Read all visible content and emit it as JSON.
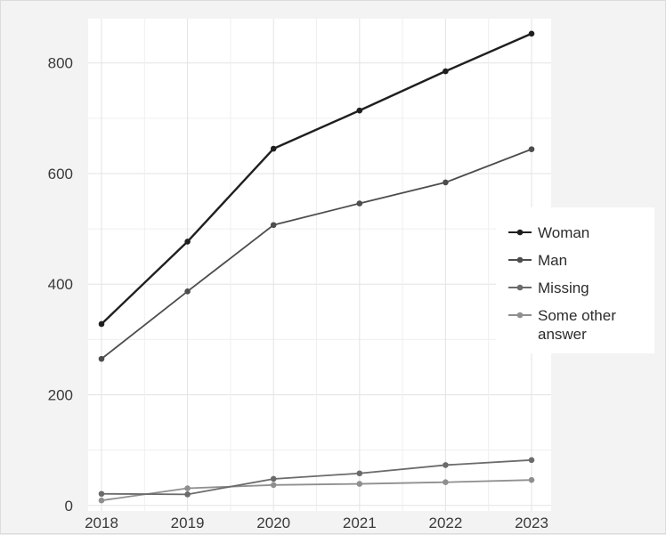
{
  "chart_data": {
    "type": "line",
    "title": "",
    "xlabel": "",
    "ylabel": "",
    "x": [
      2018,
      2019,
      2020,
      2021,
      2022,
      2023
    ],
    "xlim": [
      2017.92,
      2024.0
    ],
    "ylim": [
      -10,
      880
    ],
    "yticks": [
      0,
      200,
      400,
      600,
      800
    ],
    "grid": true,
    "legend_position": "right",
    "series": [
      {
        "name": "Woman",
        "color": "#1f1f1f",
        "values": [
          328,
          477,
          645,
          714,
          785,
          853
        ]
      },
      {
        "name": "Man",
        "color": "#4d4d4d",
        "values": [
          265,
          387,
          507,
          546,
          584,
          644
        ]
      },
      {
        "name": "Missing",
        "color": "#6b6b6b",
        "values": [
          21,
          20,
          48,
          58,
          73,
          82
        ]
      },
      {
        "name": "Some other answer",
        "color": "#8f8f8f",
        "values": [
          9,
          31,
          37,
          39,
          42,
          46
        ]
      }
    ],
    "legend_lines": [
      [
        "Woman"
      ],
      [
        "Man"
      ],
      [
        "Missing"
      ],
      [
        "Some other",
        "answer"
      ]
    ]
  }
}
